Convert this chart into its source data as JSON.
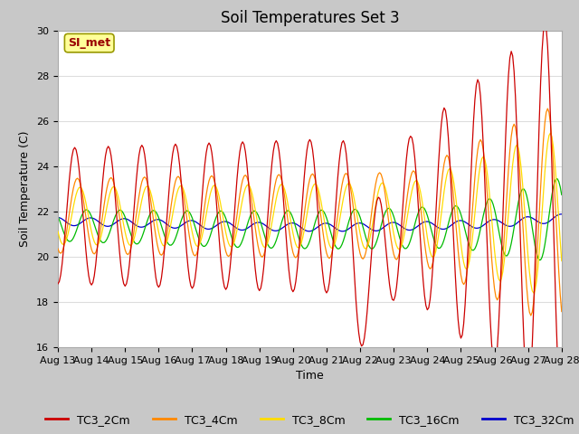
{
  "title": "Soil Temperatures Set 3",
  "xlabel": "Time",
  "ylabel": "Soil Temperature (C)",
  "ylim": [
    16,
    30
  ],
  "xlim": [
    0,
    360
  ],
  "x_tick_labels": [
    "Aug 13",
    "Aug 14",
    "Aug 15",
    "Aug 16",
    "Aug 17",
    "Aug 18",
    "Aug 19",
    "Aug 20",
    "Aug 21",
    "Aug 22",
    "Aug 23",
    "Aug 24",
    "Aug 25",
    "Aug 26",
    "Aug 27",
    "Aug 28"
  ],
  "legend_labels": [
    "TC3_2Cm",
    "TC3_4Cm",
    "TC3_8Cm",
    "TC3_16Cm",
    "TC3_32Cm"
  ],
  "line_colors": [
    "#cc0000",
    "#ff8800",
    "#ffdd00",
    "#00bb00",
    "#0000cc"
  ],
  "annotation_text": "SI_met",
  "annotation_bg": "#ffff99",
  "annotation_border": "#999900",
  "fig_bg": "#c8c8c8",
  "plot_bg": "#ffffff",
  "title_fontsize": 12,
  "axis_fontsize": 9,
  "tick_fontsize": 8,
  "legend_fontsize": 9
}
